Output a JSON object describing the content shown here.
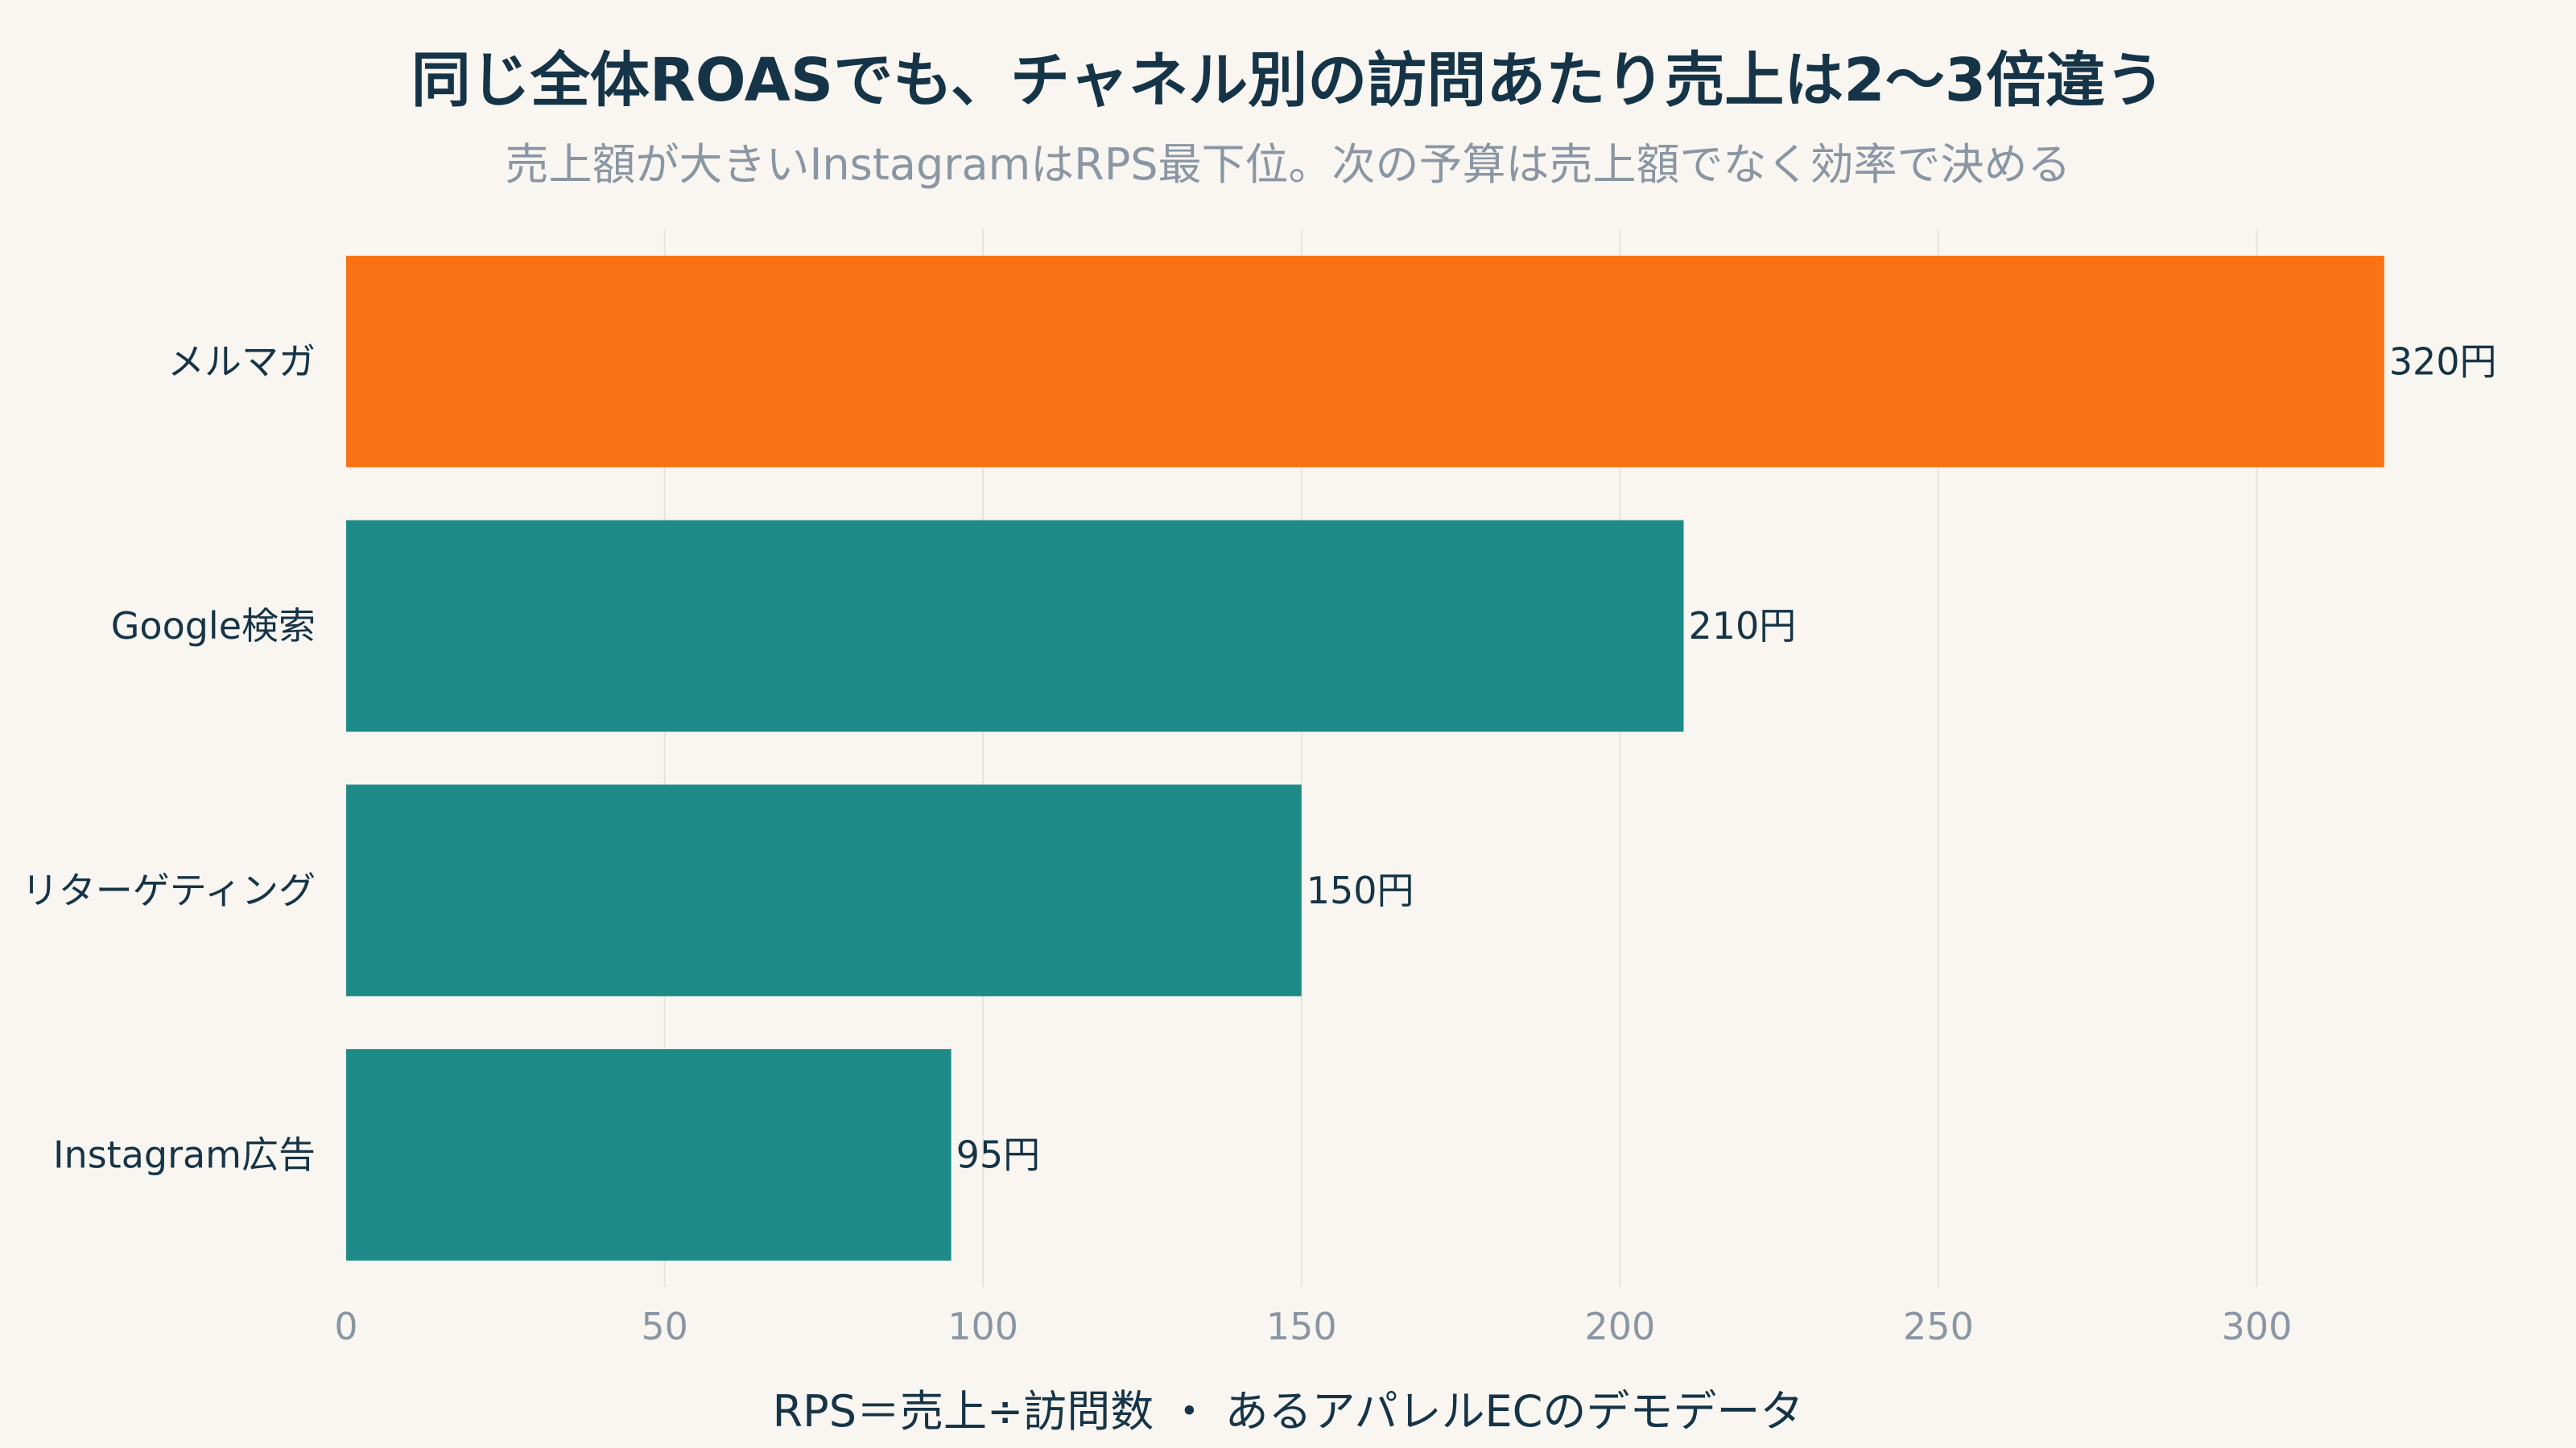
{
  "chart_data": {
    "type": "bar",
    "orientation": "horizontal",
    "title": "同じ全体ROASでも、チャネル別の訪問あたり売上は2〜3倍違う",
    "subtitle": "売上額が大きいInstagramはRPS最下位。次の予算は売上額でなく効率で決める",
    "xlabel": "RPS＝売上÷訪問数 ・ あるアパレルECのデモデータ",
    "categories": [
      "メルマガ",
      "Google検索",
      "リターゲティング",
      "Instagram広告"
    ],
    "values": [
      320,
      210,
      150,
      95
    ],
    "value_labels": [
      "320円",
      "210円",
      "150円",
      "95円"
    ],
    "colors": [
      "#f97316",
      "#1f8b89",
      "#1f8b89",
      "#1f8b89"
    ],
    "xlim": [
      0,
      340
    ],
    "xticks": [
      0,
      50,
      100,
      150,
      200,
      250,
      300
    ],
    "grid": true
  }
}
